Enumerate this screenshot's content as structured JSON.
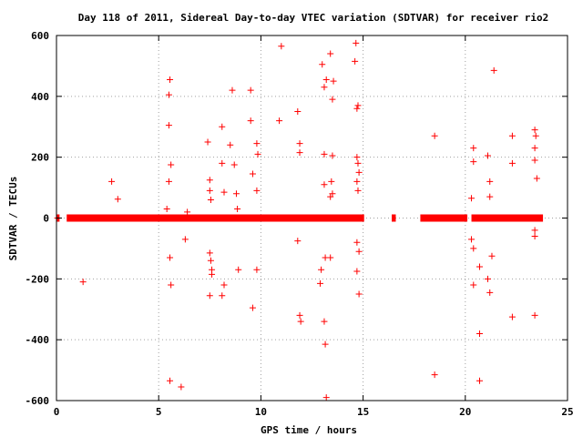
{
  "chart_data": {
    "type": "scatter",
    "title": "Day 118 of 2011, Sidereal Day-to-day VTEC variation (SDTVAR) for receiver rio2",
    "xlabel": "GPS time / hours",
    "ylabel": "SDTVAR / TECUs",
    "xlim": [
      0,
      25
    ],
    "ylim": [
      -600,
      600
    ],
    "x_ticks": [
      0,
      5,
      10,
      15,
      20,
      25
    ],
    "y_ticks": [
      -600,
      -400,
      -200,
      0,
      200,
      400,
      600
    ],
    "grid": true,
    "legend": "none",
    "marker": "plus",
    "color": "#ff0000",
    "baseline_segments": [
      [
        0,
        0.15
      ],
      [
        0.5,
        15.05
      ],
      [
        16.4,
        16.6
      ],
      [
        17.8,
        20.1
      ],
      [
        20.3,
        23.8
      ]
    ],
    "points": [
      [
        0.05,
        0
      ],
      [
        0.1,
        0
      ],
      [
        1.3,
        -210
      ],
      [
        2.7,
        120
      ],
      [
        3.0,
        62
      ],
      [
        5.4,
        30
      ],
      [
        5.5,
        120
      ],
      [
        5.5,
        305
      ],
      [
        5.5,
        405
      ],
      [
        5.55,
        455
      ],
      [
        5.6,
        175
      ],
      [
        5.55,
        -130
      ],
      [
        5.6,
        -220
      ],
      [
        5.55,
        -535
      ],
      [
        6.1,
        -555
      ],
      [
        6.3,
        -70
      ],
      [
        6.4,
        20
      ],
      [
        7.4,
        250
      ],
      [
        7.5,
        125
      ],
      [
        7.5,
        90
      ],
      [
        7.55,
        60
      ],
      [
        7.5,
        -115
      ],
      [
        7.55,
        -140
      ],
      [
        7.6,
        -185
      ],
      [
        7.5,
        -255
      ],
      [
        7.6,
        -170
      ],
      [
        8.1,
        300
      ],
      [
        8.1,
        180
      ],
      [
        8.2,
        85
      ],
      [
        8.2,
        -220
      ],
      [
        8.1,
        -255
      ],
      [
        8.5,
        240
      ],
      [
        8.6,
        420
      ],
      [
        8.7,
        175
      ],
      [
        8.8,
        80
      ],
      [
        8.9,
        -170
      ],
      [
        8.85,
        30
      ],
      [
        9.5,
        420
      ],
      [
        9.5,
        320
      ],
      [
        9.6,
        145
      ],
      [
        9.6,
        -295
      ],
      [
        9.8,
        245
      ],
      [
        9.85,
        210
      ],
      [
        9.8,
        90
      ],
      [
        9.8,
        -170
      ],
      [
        10.9,
        320
      ],
      [
        11.0,
        565
      ],
      [
        11.8,
        350
      ],
      [
        11.9,
        245
      ],
      [
        11.9,
        215
      ],
      [
        11.8,
        -75
      ],
      [
        11.9,
        -320
      ],
      [
        11.95,
        -340
      ],
      [
        12.9,
        -215
      ],
      [
        12.95,
        -170
      ],
      [
        13.0,
        505
      ],
      [
        13.1,
        430
      ],
      [
        13.1,
        210
      ],
      [
        13.2,
        455
      ],
      [
        13.1,
        110
      ],
      [
        13.15,
        -130
      ],
      [
        13.1,
        -340
      ],
      [
        13.15,
        -415
      ],
      [
        13.2,
        -590
      ],
      [
        13.4,
        540
      ],
      [
        13.5,
        390
      ],
      [
        13.55,
        450
      ],
      [
        13.5,
        205
      ],
      [
        13.45,
        120
      ],
      [
        13.5,
        80
      ],
      [
        13.4,
        70
      ],
      [
        13.4,
        -130
      ],
      [
        14.6,
        515
      ],
      [
        14.65,
        575
      ],
      [
        14.7,
        360
      ],
      [
        14.75,
        370
      ],
      [
        14.7,
        200
      ],
      [
        14.75,
        180
      ],
      [
        14.8,
        150
      ],
      [
        14.7,
        120
      ],
      [
        14.75,
        90
      ],
      [
        14.7,
        -175
      ],
      [
        14.8,
        -250
      ],
      [
        14.7,
        -80
      ],
      [
        14.8,
        -110
      ],
      [
        18.5,
        270
      ],
      [
        18.5,
        -515
      ],
      [
        20.3,
        65
      ],
      [
        20.4,
        185
      ],
      [
        20.4,
        230
      ],
      [
        20.3,
        -70
      ],
      [
        20.4,
        -100
      ],
      [
        20.4,
        -220
      ],
      [
        20.7,
        -160
      ],
      [
        20.7,
        -380
      ],
      [
        20.7,
        -535
      ],
      [
        21.1,
        205
      ],
      [
        21.2,
        120
      ],
      [
        21.2,
        70
      ],
      [
        21.1,
        -200
      ],
      [
        21.2,
        -245
      ],
      [
        21.3,
        -125
      ],
      [
        21.4,
        485
      ],
      [
        22.3,
        270
      ],
      [
        22.3,
        180
      ],
      [
        22.3,
        -325
      ],
      [
        23.4,
        290
      ],
      [
        23.45,
        270
      ],
      [
        23.4,
        230
      ],
      [
        23.4,
        190
      ],
      [
        23.5,
        130
      ],
      [
        23.4,
        -40
      ],
      [
        23.4,
        -60
      ],
      [
        23.4,
        -320
      ]
    ]
  }
}
